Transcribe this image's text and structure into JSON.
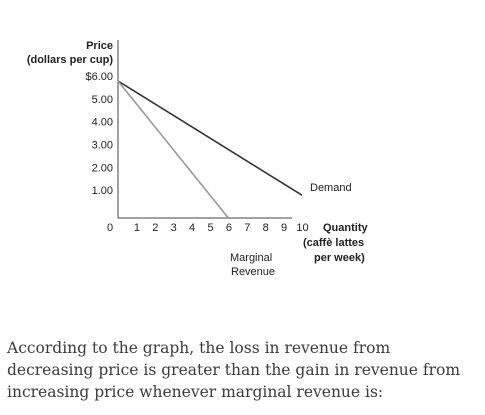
{
  "chart_data": {
    "type": "line",
    "title": "",
    "ylabel_lines": [
      "Price",
      "(dollars per cup)"
    ],
    "xlabel_lines": [
      "Quantity",
      "(caffè lattes",
      "per week)"
    ],
    "y_ticks": [
      1,
      2,
      3,
      4,
      5,
      6
    ],
    "y_tick_labels": [
      "1.00",
      "2.00",
      "3.00",
      "4.00",
      "5.00",
      "$6.00"
    ],
    "x_ticks": [
      0,
      1,
      2,
      3,
      4,
      5,
      6,
      7,
      8,
      9,
      10
    ],
    "x_tick_labels": [
      "0",
      "1",
      "2",
      "3",
      "4",
      "5",
      "6",
      "7",
      "8",
      "9",
      "10"
    ],
    "xlim": [
      0,
      10
    ],
    "ylim": [
      0,
      6
    ],
    "grid": false,
    "series": [
      {
        "name": "Demand",
        "color": "#333333",
        "points": [
          [
            0,
            6.0
          ],
          [
            10,
            1.0
          ]
        ]
      },
      {
        "name": "Marginal Revenue",
        "color": "#999999",
        "points": [
          [
            0,
            6.0
          ],
          [
            6,
            0
          ]
        ]
      }
    ],
    "annotations": {
      "demand": "Demand",
      "marginal_revenue": [
        "Marginal",
        "Revenue"
      ]
    }
  },
  "question": {
    "text": "According to the graph, the loss in revenue from decreasing price is greater than the gain in revenue from increasing price whenever marginal revenue is:"
  }
}
